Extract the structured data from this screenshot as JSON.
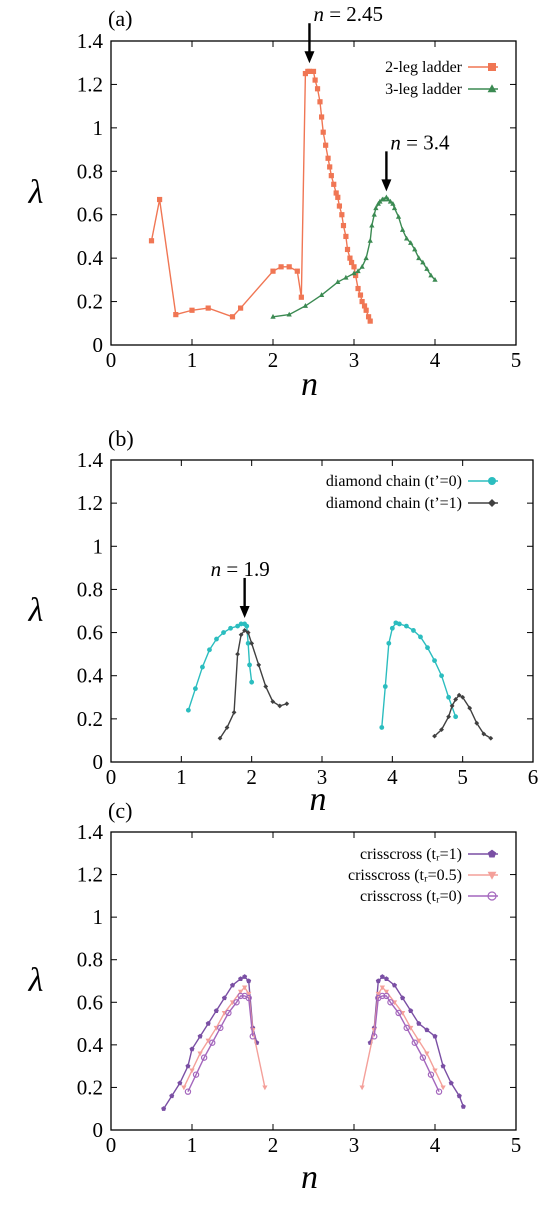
{
  "colors": {
    "two_leg": "#f07654",
    "three_leg": "#3b8a52",
    "diamond_t0": "#2bbdbf",
    "diamond_t1": "#404040",
    "criss_1": "#7a4fa4",
    "criss_05": "#f4a09a",
    "criss_0": "#a467bd"
  },
  "chart_data": [
    {
      "panel_label": "(a)",
      "type": "line",
      "xlabel": "n",
      "ylabel": "λ",
      "xlim": [
        0,
        5
      ],
      "ylim": [
        0,
        1.4
      ],
      "xticks": [
        "0",
        "1",
        "2",
        "3",
        "4",
        "5"
      ],
      "yticks": [
        "0",
        "0.2",
        "0.4",
        "0.6",
        "0.8",
        "1",
        "1.2",
        "1.4"
      ],
      "legend_position": "top-right",
      "annotations": [
        {
          "text": "n = 2.45",
          "x": 2.45,
          "y": 1.27
        },
        {
          "text": "n = 3.4",
          "x": 3.4,
          "y": 0.68
        }
      ],
      "series": [
        {
          "name": "2-leg ladder",
          "color_key": "two_leg",
          "marker": "square",
          "x": [
            0.5,
            0.6,
            0.8,
            1.0,
            1.2,
            1.5,
            1.6,
            2.0,
            2.1,
            2.2,
            2.3,
            2.35,
            2.4,
            2.43,
            2.45,
            2.5,
            2.52,
            2.55,
            2.58,
            2.6,
            2.62,
            2.65,
            2.68,
            2.7,
            2.72,
            2.75,
            2.78,
            2.8,
            2.82,
            2.85,
            2.87,
            2.9,
            2.92,
            2.95,
            2.97,
            3.0,
            3.02,
            3.05,
            3.08,
            3.1,
            3.13,
            3.15,
            3.18,
            3.2
          ],
          "y": [
            0.48,
            0.67,
            0.14,
            0.16,
            0.17,
            0.13,
            0.17,
            0.34,
            0.36,
            0.36,
            0.34,
            0.22,
            1.25,
            1.26,
            1.26,
            1.26,
            1.22,
            1.18,
            1.12,
            1.05,
            0.98,
            0.92,
            0.86,
            0.82,
            0.78,
            0.74,
            0.7,
            0.68,
            0.64,
            0.6,
            0.55,
            0.5,
            0.44,
            0.4,
            0.38,
            0.36,
            0.32,
            0.26,
            0.23,
            0.2,
            0.18,
            0.16,
            0.13,
            0.11
          ]
        },
        {
          "name": "3-leg ladder",
          "color_key": "three_leg",
          "marker": "triangle",
          "x": [
            2.0,
            2.2,
            2.4,
            2.6,
            2.8,
            2.9,
            3.0,
            3.05,
            3.1,
            3.15,
            3.2,
            3.22,
            3.25,
            3.27,
            3.3,
            3.32,
            3.35,
            3.37,
            3.4,
            3.42,
            3.45,
            3.48,
            3.5,
            3.55,
            3.6,
            3.65,
            3.7,
            3.75,
            3.8,
            3.85,
            3.9,
            3.95,
            4.0
          ],
          "y": [
            0.13,
            0.14,
            0.18,
            0.23,
            0.29,
            0.31,
            0.33,
            0.34,
            0.36,
            0.4,
            0.48,
            0.55,
            0.6,
            0.63,
            0.65,
            0.66,
            0.67,
            0.67,
            0.68,
            0.67,
            0.66,
            0.65,
            0.63,
            0.59,
            0.53,
            0.49,
            0.47,
            0.44,
            0.4,
            0.38,
            0.35,
            0.32,
            0.3
          ]
        }
      ]
    },
    {
      "panel_label": "(b)",
      "type": "line",
      "xlabel": "n",
      "ylabel": "λ",
      "xlim": [
        0,
        6
      ],
      "ylim": [
        0,
        1.4
      ],
      "xticks": [
        "0",
        "1",
        "2",
        "3",
        "4",
        "5",
        "6"
      ],
      "yticks": [
        "0",
        "0.2",
        "0.4",
        "0.6",
        "0.8",
        "1",
        "1.2",
        "1.4"
      ],
      "legend_position": "top-right",
      "annotations": [
        {
          "text": "n = 1.9",
          "x": 1.9,
          "y": 0.64
        }
      ],
      "series": [
        {
          "name": "diamond chain (t’=0)",
          "color_key": "diamond_t0",
          "marker": "circle",
          "segments": [
            {
              "x": [
                1.1,
                1.2,
                1.3,
                1.4,
                1.5,
                1.6,
                1.7,
                1.8,
                1.85,
                1.9,
                1.93,
                1.95,
                1.97,
                2.0
              ],
              "y": [
                0.24,
                0.34,
                0.44,
                0.52,
                0.57,
                0.6,
                0.62,
                0.63,
                0.64,
                0.64,
                0.63,
                0.55,
                0.45,
                0.37
              ]
            },
            {
              "x": [
                3.85,
                3.9,
                3.95,
                4.0,
                4.05,
                4.1,
                4.2,
                4.3,
                4.4,
                4.5,
                4.6,
                4.7,
                4.8,
                4.9
              ],
              "y": [
                0.16,
                0.35,
                0.55,
                0.62,
                0.645,
                0.64,
                0.63,
                0.61,
                0.58,
                0.53,
                0.47,
                0.4,
                0.3,
                0.21
              ]
            }
          ]
        },
        {
          "name": "diamond chain (t’=1)",
          "color_key": "diamond_t1",
          "marker": "diamond",
          "segments": [
            {
              "x": [
                1.55,
                1.65,
                1.75,
                1.8,
                1.85,
                1.9,
                1.95,
                2.0,
                2.1,
                2.2,
                2.3,
                2.4,
                2.5
              ],
              "y": [
                0.11,
                0.16,
                0.23,
                0.5,
                0.59,
                0.61,
                0.6,
                0.55,
                0.45,
                0.35,
                0.28,
                0.26,
                0.27
              ]
            },
            {
              "x": [
                4.6,
                4.7,
                4.8,
                4.85,
                4.9,
                4.95,
                5.0,
                5.1,
                5.2,
                5.3,
                5.4
              ],
              "y": [
                0.12,
                0.15,
                0.21,
                0.26,
                0.29,
                0.31,
                0.3,
                0.25,
                0.18,
                0.13,
                0.11
              ]
            }
          ]
        }
      ]
    },
    {
      "panel_label": "(c)",
      "type": "line",
      "xlabel": "n",
      "ylabel": "λ",
      "xlim": [
        0,
        5
      ],
      "ylim": [
        0,
        1.4
      ],
      "xticks": [
        "0",
        "1",
        "2",
        "3",
        "4",
        "5"
      ],
      "yticks": [
        "0",
        "0.2",
        "0.4",
        "0.6",
        "0.8",
        "1",
        "1.2",
        "1.4"
      ],
      "legend_position": "top-right",
      "series": [
        {
          "name": "crisscross (tᵣ=1)",
          "color_key": "criss_1",
          "marker": "pentagon",
          "segments": [
            {
              "x": [
                0.65,
                0.75,
                0.85,
                0.95,
                1.0,
                1.1,
                1.2,
                1.3,
                1.4,
                1.5,
                1.6,
                1.65,
                1.7,
                1.75,
                1.8
              ],
              "y": [
                0.1,
                0.16,
                0.22,
                0.3,
                0.38,
                0.44,
                0.5,
                0.56,
                0.62,
                0.68,
                0.71,
                0.72,
                0.7,
                0.48,
                0.41
              ]
            },
            {
              "x": [
                3.2,
                3.25,
                3.3,
                3.35,
                3.4,
                3.5,
                3.6,
                3.7,
                3.8,
                3.9,
                4.0,
                4.1,
                4.2,
                4.3,
                4.35
              ],
              "y": [
                0.41,
                0.48,
                0.7,
                0.72,
                0.71,
                0.68,
                0.62,
                0.56,
                0.5,
                0.47,
                0.44,
                0.3,
                0.22,
                0.16,
                0.11
              ]
            }
          ]
        },
        {
          "name": "crisscross (tᵣ=0.5)",
          "color_key": "criss_05",
          "marker": "triangle-down",
          "segments": [
            {
              "x": [
                0.9,
                1.0,
                1.1,
                1.2,
                1.3,
                1.4,
                1.5,
                1.6,
                1.65,
                1.7,
                1.75,
                1.9
              ],
              "y": [
                0.2,
                0.28,
                0.36,
                0.42,
                0.48,
                0.55,
                0.6,
                0.65,
                0.67,
                0.64,
                0.47,
                0.2
              ]
            },
            {
              "x": [
                3.1,
                3.25,
                3.3,
                3.35,
                3.4,
                3.5,
                3.6,
                3.7,
                3.8,
                3.9,
                4.0,
                4.1
              ],
              "y": [
                0.2,
                0.47,
                0.64,
                0.67,
                0.65,
                0.6,
                0.55,
                0.48,
                0.42,
                0.36,
                0.28,
                0.2
              ]
            }
          ]
        },
        {
          "name": "crisscross (tᵣ=0)",
          "color_key": "criss_0",
          "marker": "circle-open",
          "segments": [
            {
              "x": [
                0.95,
                1.05,
                1.15,
                1.25,
                1.35,
                1.45,
                1.55,
                1.6,
                1.65,
                1.7,
                1.75
              ],
              "y": [
                0.18,
                0.26,
                0.34,
                0.41,
                0.48,
                0.55,
                0.6,
                0.63,
                0.63,
                0.62,
                0.44
              ]
            },
            {
              "x": [
                3.25,
                3.3,
                3.35,
                3.4,
                3.45,
                3.55,
                3.65,
                3.75,
                3.85,
                3.95,
                4.05
              ],
              "y": [
                0.44,
                0.62,
                0.63,
                0.63,
                0.6,
                0.55,
                0.48,
                0.41,
                0.34,
                0.26,
                0.18
              ]
            }
          ]
        }
      ]
    }
  ]
}
